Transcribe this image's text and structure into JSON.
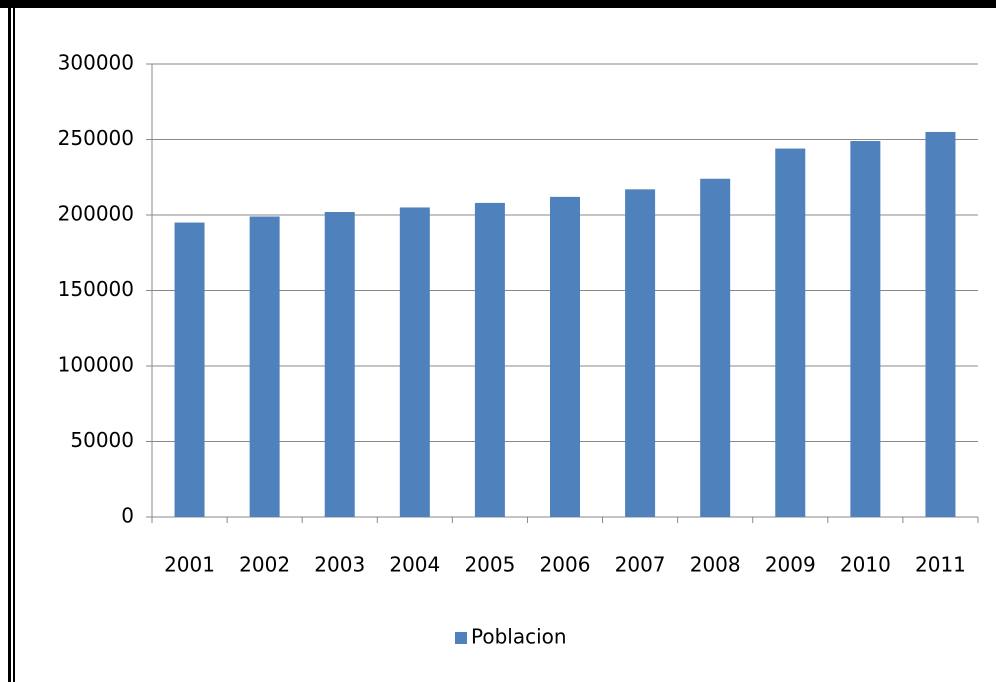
{
  "chart_data": {
    "type": "bar",
    "categories": [
      "2001",
      "2002",
      "2003",
      "2004",
      "2005",
      "2006",
      "2007",
      "2008",
      "2009",
      "2010",
      "2011"
    ],
    "series": [
      {
        "name": "Poblacion",
        "color": "#4f81bd",
        "values": [
          195000,
          199000,
          202000,
          205000,
          208000,
          212000,
          217000,
          224000,
          244000,
          249000,
          255000
        ]
      }
    ],
    "ylim": [
      0,
      300000
    ],
    "yticks": [
      0,
      50000,
      100000,
      150000,
      200000,
      250000,
      300000
    ],
    "grid": true,
    "legend": "bottom"
  }
}
